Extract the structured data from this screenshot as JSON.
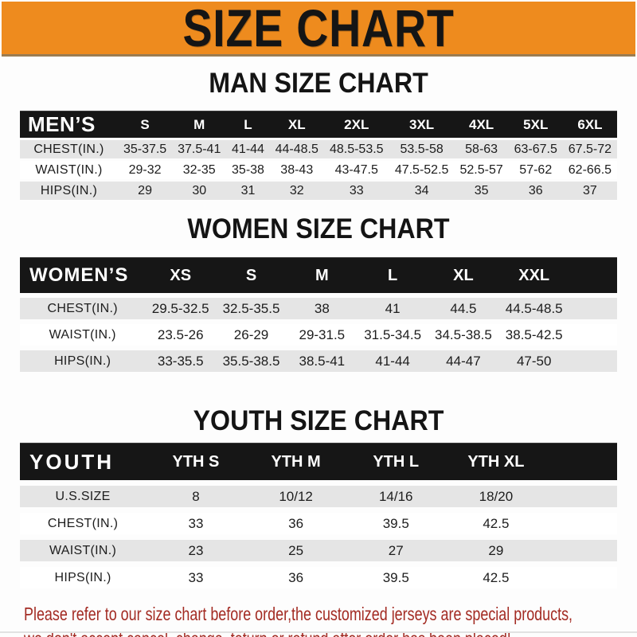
{
  "banner": {
    "title": "SIZE CHART"
  },
  "sections": {
    "men": {
      "heading": "MAN SIZE CHART",
      "header": {
        "label": "MEN’S",
        "sizes": [
          "S",
          "M",
          "L",
          "XL",
          "2XL",
          "3XL",
          "4XL",
          "5XL",
          "6XL"
        ]
      },
      "rows": [
        {
          "label": "CHEST(IN.)",
          "values": [
            "35-37.5",
            "37.5-41",
            "41-44",
            "44-48.5",
            "48.5-53.5",
            "53.5-58",
            "58-63",
            "63-67.5",
            "67.5-72"
          ]
        },
        {
          "label": "WAIST(IN.)",
          "values": [
            "29-32",
            "32-35",
            "35-38",
            "38-43",
            "43-47.5",
            "47.5-52.5",
            "52.5-57",
            "57-62",
            "62-66.5"
          ]
        },
        {
          "label": "HIPS(IN.)",
          "values": [
            "29",
            "30",
            "31",
            "32",
            "33",
            "34",
            "35",
            "36",
            "37"
          ]
        }
      ]
    },
    "women": {
      "heading": "WOMEN SIZE CHART",
      "header": {
        "label": "WOMEN’S",
        "sizes": [
          "XS",
          "S",
          "M",
          "L",
          "XL",
          "XXL"
        ]
      },
      "rows": [
        {
          "label": "CHEST(IN.)",
          "values": [
            "29.5-32.5",
            "32.5-35.5",
            "38",
            "41",
            "44.5",
            "44.5-48.5"
          ]
        },
        {
          "label": "WAIST(IN.)",
          "values": [
            "23.5-26",
            "26-29",
            "29-31.5",
            "31.5-34.5",
            "34.5-38.5",
            "38.5-42.5"
          ]
        },
        {
          "label": "HIPS(IN.)",
          "values": [
            "33-35.5",
            "35.5-38.5",
            "38.5-41",
            "41-44",
            "44-47",
            "47-50"
          ]
        }
      ]
    },
    "youth": {
      "heading": "YOUTH SIZE CHART",
      "header": {
        "label": "YOUTH",
        "sizes": [
          "YTH S",
          "YTH M",
          "YTH L",
          "YTH XL"
        ]
      },
      "rows": [
        {
          "label": "U.S.SIZE",
          "values": [
            "8",
            "10/12",
            "14/16",
            "18/20"
          ]
        },
        {
          "label": "CHEST(IN.)",
          "values": [
            "33",
            "36",
            "39.5",
            "42.5"
          ]
        },
        {
          "label": "WAIST(IN.)",
          "values": [
            "23",
            "25",
            "27",
            "29"
          ]
        },
        {
          "label": "HIPS(IN.)",
          "values": [
            "33",
            "36",
            "39.5",
            "42.5"
          ]
        }
      ]
    }
  },
  "footer": {
    "line1": "Please refer to our size chart before order,the customized jerseys are special products,",
    "line2": "we don't accept cancel, change, teturn or refund after order has been placed!"
  },
  "colors": {
    "banner_orange": "#ee8b1e",
    "bar_black": "#161616",
    "row_gray": "#e5e5e5",
    "footer_red": "#a32b23"
  }
}
